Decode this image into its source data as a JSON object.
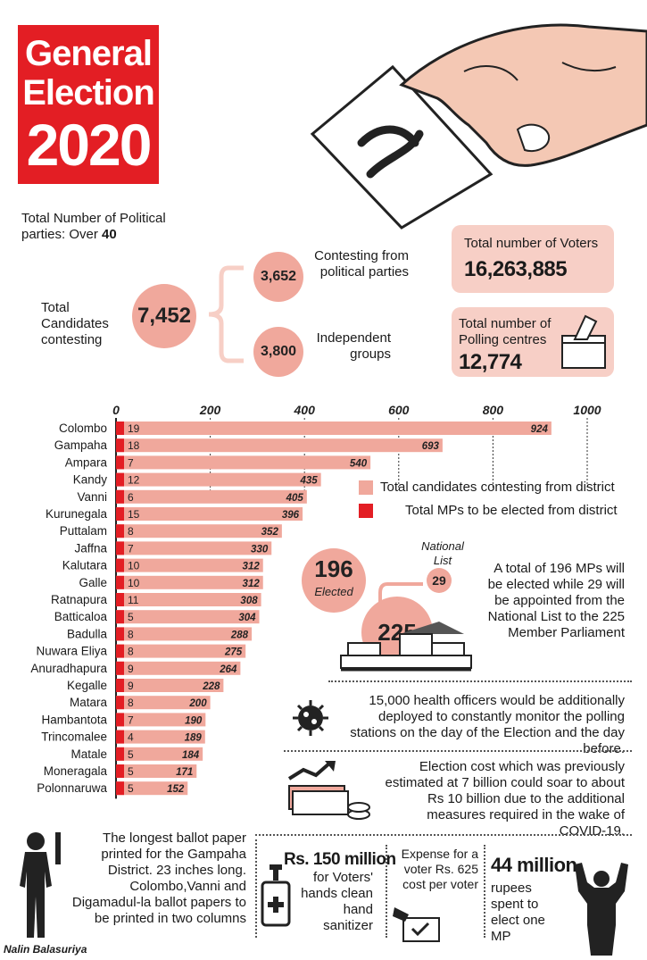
{
  "title": {
    "line1": "General",
    "line2": "Election",
    "line3": "2020"
  },
  "parties": {
    "text": "Total Number of Political parties:  Over ",
    "count": "40"
  },
  "candidates": {
    "label": "Total Candidates contesting",
    "total": "7,452",
    "political_value": "3,652",
    "political_label": "Contesting from political parties",
    "independent_value": "3,800",
    "independent_label": "Independent groups"
  },
  "voters": {
    "label": "Total number of Voters",
    "value": "16,263,885"
  },
  "polling": {
    "label": "Total number of Polling centres",
    "value": "12,774"
  },
  "chart_data": {
    "type": "bar",
    "orientation": "horizontal",
    "xlim": [
      0,
      1000
    ],
    "ticks": [
      0,
      200,
      400,
      600,
      800,
      1000
    ],
    "categories": [
      "Colombo",
      "Gampaha",
      "Ampara",
      "Kandy",
      "Vanni",
      "Kurunegala",
      "Puttalam",
      "Jaffna",
      "Kalutara",
      "Galle",
      "Ratnapura",
      "Batticaloa",
      "Badulla",
      "Nuwara Eliya",
      "Anuradhapura",
      "Kegalle",
      "Matara",
      "Hambantota",
      "Trincomalee",
      "Matale",
      "Moneragala",
      "Polonnaruwa"
    ],
    "series": [
      {
        "name": "Total candidates contesting from district",
        "color": "#f0a89c",
        "values": [
          924,
          693,
          540,
          435,
          405,
          396,
          352,
          330,
          312,
          312,
          308,
          304,
          288,
          275,
          264,
          228,
          200,
          190,
          189,
          184,
          171,
          152
        ]
      },
      {
        "name": "Total MPs to be elected from district",
        "color": "#e31e24",
        "values": [
          19,
          18,
          7,
          12,
          6,
          15,
          8,
          7,
          10,
          10,
          11,
          5,
          8,
          8,
          9,
          9,
          8,
          7,
          4,
          5,
          5,
          5
        ]
      }
    ],
    "legend_position": "right"
  },
  "mps": {
    "elected_value": "196",
    "elected_label": "Elected",
    "national_label": "National List",
    "national_value": "29",
    "total_value": "225",
    "text": "A total of 196 MPs will be elected while 29 will be appointed from the National List to the 225 Member Parliament"
  },
  "health": {
    "text": "15,000 health officers would be additionally deployed to constantly monitor the polling stations on the day of the Election and the day before."
  },
  "cost": {
    "text": "Election cost which was previously estimated at 7 billion could soar to about Rs 10 billion due to the additional measures required in the wake of COVID-19."
  },
  "ballot": {
    "text": "The longest ballot paper printed for the Gampaha District. 23 inches long. Colombo,Vanni and Digamadul-la ballot papers to be printed in two columns"
  },
  "sanitizer": {
    "value": "Rs. 150 million",
    "text": "for Voters' hands clean hand sanitizer"
  },
  "expense": {
    "text": "Expense for a voter  Rs. 625 cost per voter"
  },
  "mp_cost": {
    "value": "44 million",
    "text": "rupees spent to elect one MP"
  },
  "credit": "Nalin Balasuriya",
  "colors": {
    "red": "#e31e24",
    "pink": "#f0a89c",
    "lightpink": "#f7cfc6"
  }
}
